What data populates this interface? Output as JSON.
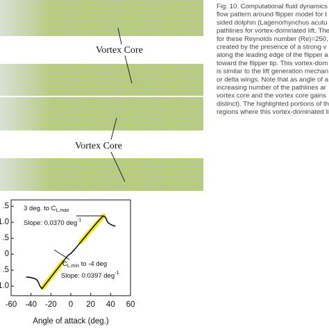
{
  "figure": {
    "vortex_labels": [
      "Vortex Core",
      "Vortex Core"
    ],
    "caption_lines": [
      "Fig. 10. Computational fluid dynamics",
      "flow pattern around flipper model for t",
      "sided dolphin (Lagenorhynchus acutu",
      "pathlines for vortex-dominated lift. The",
      "for these Reynolds number (Re)=250,",
      "created by the presence of a strong v",
      "along the leading edge of the flipper a",
      "toward the flipper tip. This vortex-dom",
      "is similar to the lift generation mechan",
      "or delta wings. Note that as angle of a",
      "increasing number of the pathlines ar",
      "vortex core and the vortex core gains",
      "distinct). The highlighted portions of th",
      "regions where this vortex-dominated li"
    ]
  },
  "chart_data": {
    "type": "line",
    "x_label": "Angle of attack (deg.)",
    "x": [
      -45,
      -42,
      -38,
      -35,
      -33,
      -31,
      -29,
      -26,
      -22,
      -18,
      -14,
      -10,
      -6,
      -4,
      -2,
      0,
      3,
      6,
      10,
      14,
      18,
      22,
      26,
      30,
      33,
      35,
      37,
      39,
      42,
      45
    ],
    "series": [
      {
        "color": "#111111",
        "values": [
          -0.72,
          -0.72,
          -0.75,
          -0.78,
          -0.85,
          -1.0,
          -1.08,
          -0.96,
          -0.8,
          -0.64,
          -0.48,
          -0.32,
          -0.16,
          -0.08,
          -0.02,
          0.02,
          0.12,
          0.23,
          0.38,
          0.53,
          0.68,
          0.83,
          0.98,
          1.12,
          1.2,
          1.15,
          1.0,
          0.95,
          0.9,
          0.88
        ]
      }
    ],
    "highlights": [
      {
        "color": "#f2e600",
        "x": [
          -28,
          -8
        ]
      },
      {
        "color": "#f2e600",
        "x": [
          10,
          33
        ]
      }
    ],
    "xlim": [
      -60,
      60
    ],
    "ylim": [
      -1.3,
      1.7
    ],
    "xticks": [
      -60,
      -40,
      -20,
      0,
      20,
      40,
      60
    ],
    "yticks": [
      {
        "value": 1.5,
        "label": ".5"
      },
      {
        "value": 1.0,
        "label": "1.0"
      },
      {
        "value": 0.5,
        "label": ".5"
      },
      0,
      {
        "value": -0.5,
        "label": ".5"
      },
      {
        "value": -1.0,
        "label": "1.0"
      }
    ],
    "annotations": [
      {
        "text": "3 deg. to C",
        "sub": "L,max"
      },
      {
        "text": "Slope: 0.0370 deg",
        "sup": "-1"
      },
      {
        "text": "C",
        "sub": "L,min",
        "after": " to -4 deg"
      },
      {
        "text": "Slope: 0.0397 deg",
        "sup": "-1"
      }
    ]
  }
}
